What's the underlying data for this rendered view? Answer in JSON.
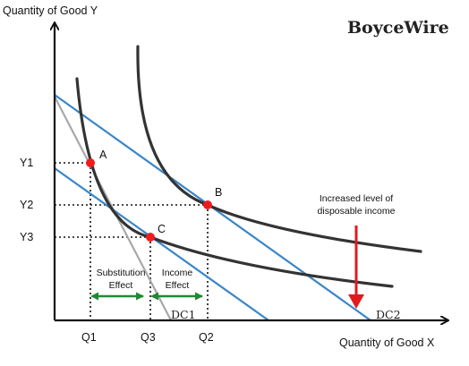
{
  "brand": "BoyceWire",
  "axes": {
    "y_label": "Quantity of Good Y",
    "x_label": "Quantity of Good X"
  },
  "y_ticks": [
    "Y1",
    "Y2",
    "Y3"
  ],
  "x_ticks": [
    "Q1",
    "Q3",
    "Q2"
  ],
  "points": [
    "A",
    "B",
    "C"
  ],
  "budget_labels": [
    "DC1",
    "DC2"
  ],
  "annotations": {
    "increase": "Increased level of disposable income",
    "substitution": "Substitution Effect",
    "income": "Income Effect"
  },
  "colors": {
    "budget_line": "#3a86c8",
    "pivot_line": "#a8a8a8",
    "curve": "#333333",
    "point": "#ee1c1c",
    "effect_arrow": "#1f8a34",
    "shift_arrow": "#e11b1b"
  }
}
